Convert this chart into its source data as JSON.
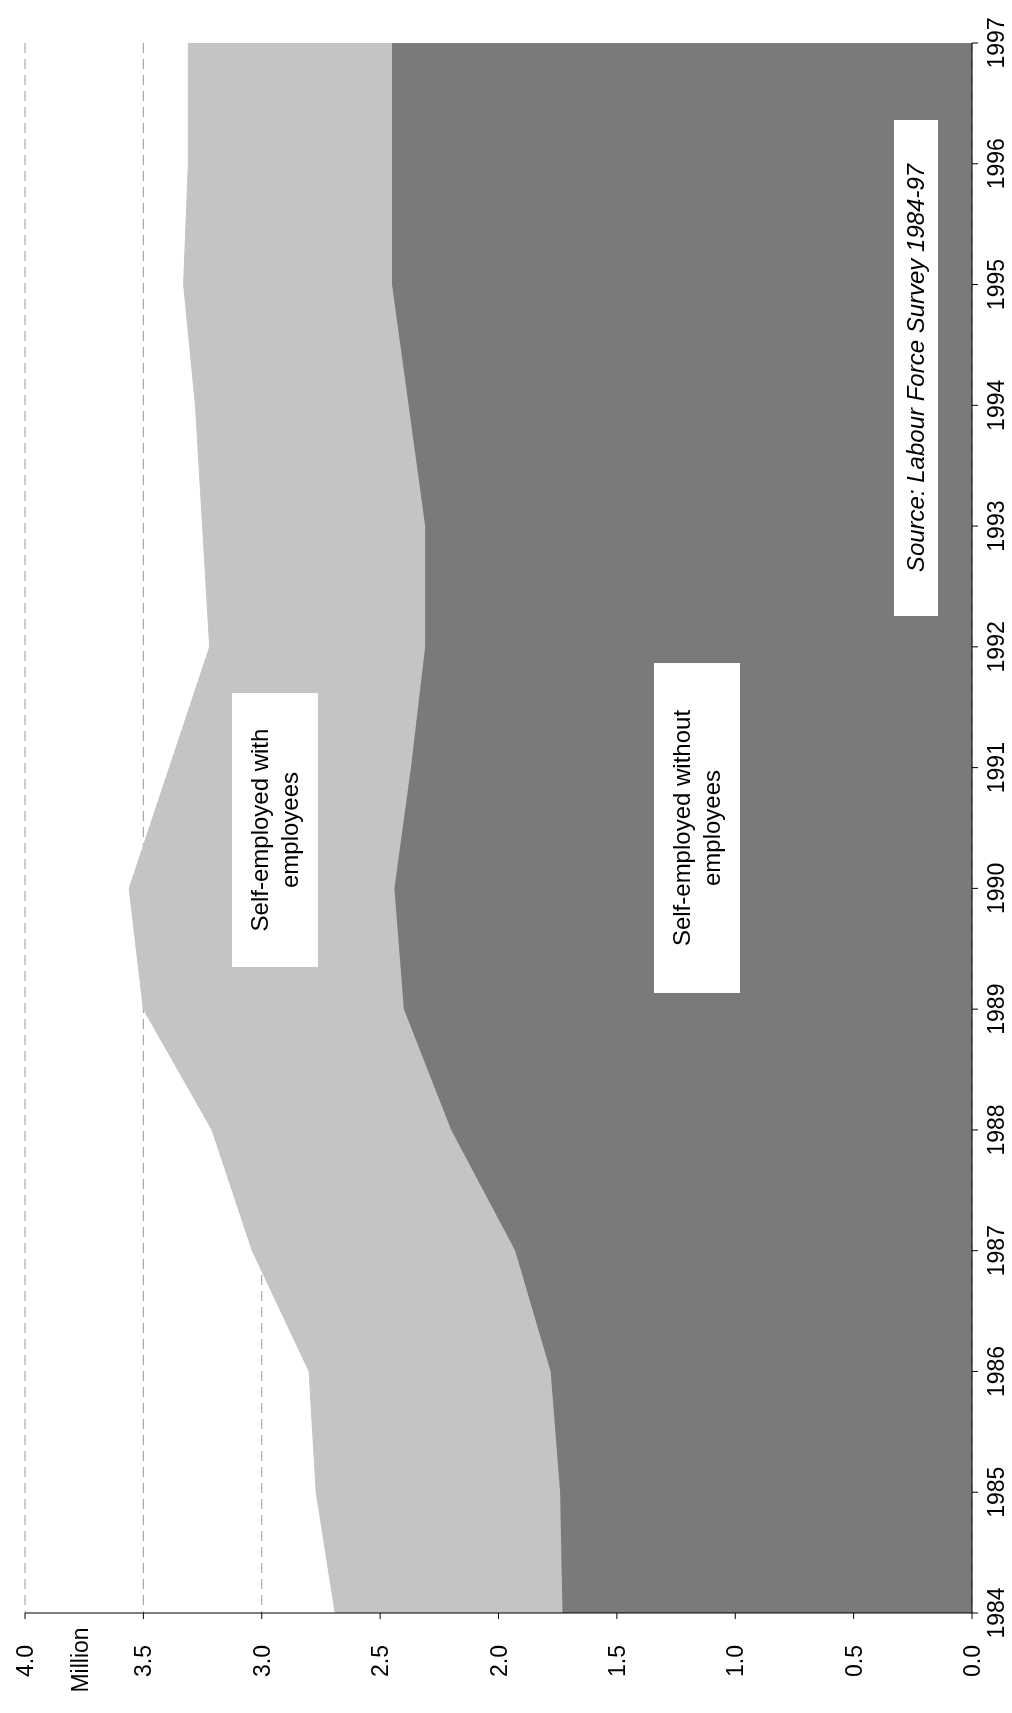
{
  "chart_data": {
    "type": "area",
    "stacked": true,
    "orientation": "horizontal",
    "annotations": [
      "Million",
      "Source: Labour Force Survey 1984-97"
    ],
    "x": [
      1984,
      1985,
      1986,
      1987,
      1988,
      1989,
      1990,
      1991,
      1992,
      1993,
      1994,
      1995,
      1996,
      1997
    ],
    "series": [
      {
        "name": "Self-employed without employees",
        "color": "#7a7a7a",
        "values": [
          1.73,
          1.74,
          1.78,
          1.93,
          2.2,
          2.4,
          2.44,
          2.37,
          2.31,
          2.31,
          2.38,
          2.45,
          2.45,
          2.45
        ]
      },
      {
        "name": "Self-employed with employees",
        "color": "#c4c4c4",
        "values": [
          0.96,
          1.03,
          1.02,
          1.11,
          1.01,
          1.1,
          1.12,
          1.02,
          0.91,
          0.94,
          0.9,
          0.88,
          0.86,
          0.86
        ]
      }
    ],
    "ylim": [
      1984,
      1997
    ],
    "yticks": [
      1984,
      1985,
      1986,
      1987,
      1988,
      1989,
      1990,
      1991,
      1992,
      1993,
      1994,
      1995,
      1996,
      1997
    ],
    "xlim": [
      4,
      0
    ],
    "xticks": [
      {
        "value": 0,
        "label": "0.0"
      },
      {
        "value": 0.5,
        "label": "0.5"
      },
      {
        "value": 1,
        "label": "1.0"
      },
      {
        "value": 1.5,
        "label": "1.5"
      },
      {
        "value": 2,
        "label": "2.0"
      },
      {
        "value": 2.5,
        "label": "2.5"
      },
      {
        "value": 3,
        "label": "3.0"
      },
      {
        "value": 3.5,
        "label": "3.5"
      },
      {
        "value": 4,
        "label": "4.0"
      }
    ],
    "grid": "x",
    "legend": false
  }
}
